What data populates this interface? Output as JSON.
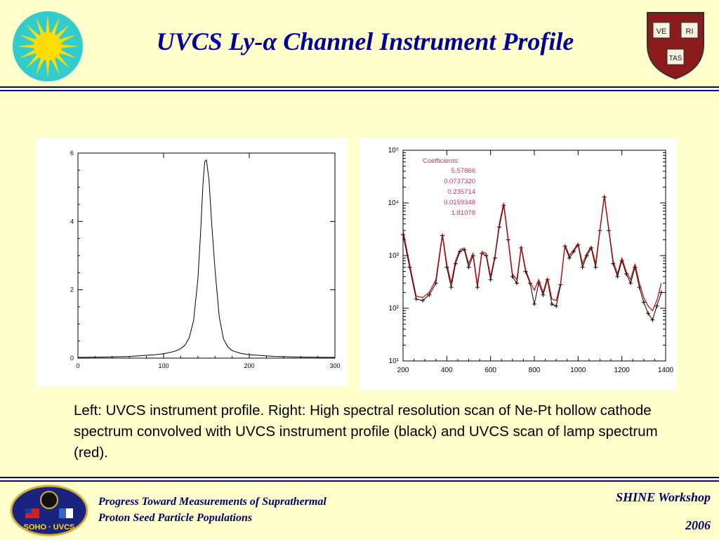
{
  "header": {
    "title": "UVCS Ly-α Channel Instrument Profile",
    "shield_words": [
      "VE",
      "RI",
      "TAS"
    ]
  },
  "caption": "Left: UVCS instrument profile. Right: High spectral resolution scan of Ne-Pt hollow cathode spectrum convolved with UVCS instrument profile (black) and UVCS scan of lamp spectrum (red).",
  "footer": {
    "left_title_line1": "Progress Toward Measurements of Suprathermal",
    "left_title_line2": "Proton Seed Particle Populations",
    "event": "SHINE Workshop",
    "year": "2006",
    "logo_text": "SOHO · UVCS"
  },
  "colors": {
    "title": "#000099",
    "background": "#ffffcc",
    "red_series": "#cc0000",
    "black_series": "#000000",
    "coefficients_text": "#cc3366"
  },
  "chart_data": [
    {
      "type": "line",
      "name": "left-instrument-profile",
      "xlim": [
        0,
        300
      ],
      "ylim": [
        0,
        6
      ],
      "xticks": [
        0,
        100,
        200,
        300
      ],
      "yticks": [
        0,
        2,
        4,
        6
      ],
      "x": [
        0,
        30,
        60,
        90,
        100,
        110,
        115,
        120,
        125,
        130,
        135,
        140,
        143,
        146,
        148,
        150,
        153,
        156,
        160,
        165,
        170,
        175,
        180,
        190,
        200,
        230,
        260,
        300
      ],
      "y": [
        0.02,
        0.03,
        0.05,
        0.1,
        0.13,
        0.18,
        0.22,
        0.28,
        0.38,
        0.6,
        1.1,
        2.3,
        3.6,
        5.1,
        5.75,
        5.8,
        5.2,
        4.0,
        2.6,
        1.2,
        0.55,
        0.33,
        0.22,
        0.14,
        0.1,
        0.05,
        0.03,
        0.02
      ],
      "grid": false
    },
    {
      "type": "line",
      "name": "right-ne-pt-spectrum",
      "yscale": "log",
      "xlim": [
        200,
        1400
      ],
      "ylim": [
        10,
        100000
      ],
      "xticks": [
        200,
        400,
        600,
        800,
        1000,
        1200,
        1400
      ],
      "yticks": [
        10,
        100,
        1000,
        10000,
        100000
      ],
      "ytick_labels": [
        "10¹",
        "10²",
        "10³",
        "10⁴",
        "10⁵"
      ],
      "annotation": {
        "label": "Coefficients:",
        "values": [
          "5.57866",
          "0.0737320",
          "0.235714",
          "0.0159348",
          "1.81078"
        ],
        "placement": "top-left"
      },
      "series": [
        {
          "color": "#000000",
          "marker": "+",
          "x": [
            200,
            230,
            260,
            290,
            320,
            350,
            380,
            400,
            420,
            440,
            460,
            480,
            500,
            520,
            540,
            560,
            580,
            600,
            620,
            640,
            660,
            680,
            700,
            720,
            740,
            760,
            780,
            800,
            820,
            840,
            860,
            880,
            900,
            920,
            940,
            960,
            980,
            1000,
            1020,
            1040,
            1060,
            1080,
            1100,
            1120,
            1140,
            1160,
            1180,
            1200,
            1220,
            1240,
            1260,
            1280,
            1300,
            1320,
            1340,
            1360,
            1380
          ],
          "y": [
            2500,
            600,
            150,
            140,
            180,
            300,
            2400,
            600,
            250,
            700,
            1200,
            1300,
            600,
            1000,
            250,
            1100,
            1000,
            350,
            900,
            3500,
            9000,
            2000,
            400,
            300,
            1400,
            500,
            300,
            120,
            300,
            180,
            350,
            120,
            110,
            280,
            1500,
            900,
            1200,
            1600,
            600,
            1000,
            1400,
            600,
            3000,
            13000,
            3000,
            700,
            400,
            800,
            450,
            300,
            600,
            250,
            130,
            80,
            60,
            110,
            200
          ]
        },
        {
          "color": "#cc0000",
          "x": [
            200,
            230,
            260,
            290,
            320,
            350,
            380,
            400,
            420,
            440,
            460,
            480,
            500,
            520,
            540,
            560,
            580,
            600,
            620,
            640,
            660,
            680,
            700,
            720,
            740,
            760,
            780,
            800,
            820,
            840,
            860,
            880,
            900,
            920,
            940,
            960,
            980,
            1000,
            1020,
            1040,
            1060,
            1080,
            1100,
            1120,
            1140,
            1160,
            1180,
            1200,
            1220,
            1240,
            1260,
            1280,
            1300,
            1320,
            1340,
            1360,
            1380
          ],
          "y": [
            3000,
            700,
            170,
            160,
            200,
            350,
            2600,
            700,
            300,
            800,
            1300,
            1400,
            700,
            1100,
            280,
            1200,
            1100,
            400,
            1000,
            4000,
            10000,
            2200,
            450,
            350,
            1500,
            550,
            320,
            220,
            350,
            200,
            380,
            150,
            140,
            300,
            1600,
            1000,
            1300,
            1700,
            700,
            1100,
            1500,
            700,
            3200,
            14000,
            3300,
            800,
            450,
            900,
            500,
            350,
            700,
            300,
            160,
            110,
            90,
            140,
            300
          ]
        }
      ],
      "grid": false
    }
  ]
}
